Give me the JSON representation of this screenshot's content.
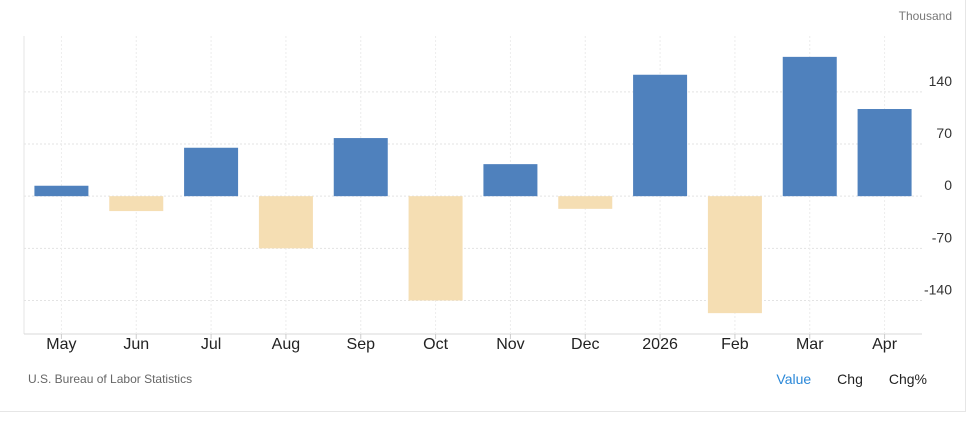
{
  "chart_data": {
    "type": "bar",
    "unit": "Thousand",
    "categories": [
      "May",
      "Jun",
      "Jul",
      "Aug",
      "Sep",
      "Oct",
      "Nov",
      "Dec",
      "2026",
      "Feb",
      "Mar",
      "Apr"
    ],
    "values": [
      14,
      -20,
      65,
      -70,
      78,
      -140,
      43,
      -17,
      163,
      -157,
      187,
      117
    ],
    "ylim": [
      -185,
      215
    ],
    "yticks": [
      140,
      70,
      0,
      -70,
      -140
    ],
    "grid": true,
    "colors": {
      "positive": "#4f81bd",
      "negative": "#f5deb3"
    }
  },
  "footer": {
    "source": "U.S. Bureau of Labor Statistics",
    "tabs": [
      {
        "label": "Value",
        "active": true
      },
      {
        "label": "Chg",
        "active": false
      },
      {
        "label": "Chg%",
        "active": false
      }
    ]
  }
}
